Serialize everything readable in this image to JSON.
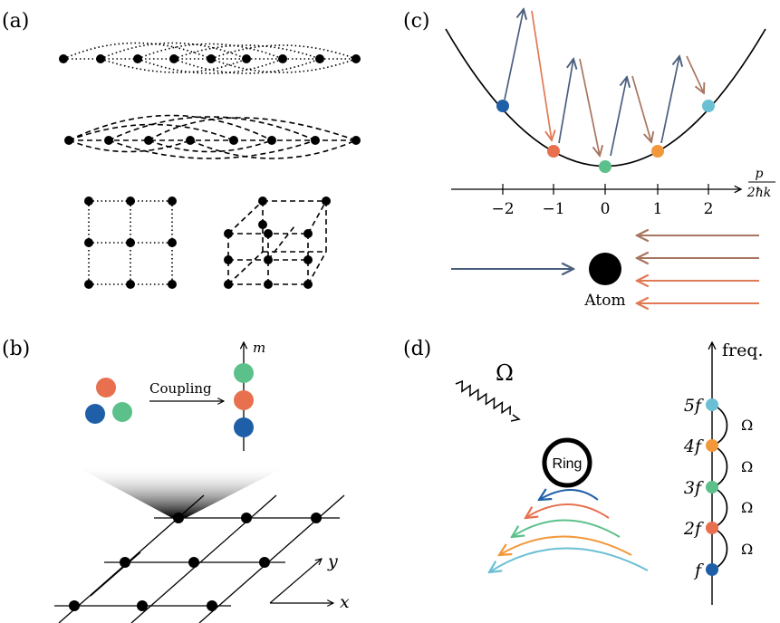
{
  "panels": {
    "a": {
      "label": "(a)"
    },
    "b": {
      "label": "(b)",
      "arrow_label": "Coupling",
      "synthetic_axis_label": "m",
      "x_axis_label": "x",
      "y_axis_label": "y"
    },
    "c": {
      "label": "(c)",
      "axis_label_numerator": "p",
      "axis_label_denominator": "2ħk",
      "ticks": [
        "−2",
        "−1",
        "0",
        "1",
        "2"
      ],
      "atom_label": "Atom"
    },
    "d": {
      "label": "(d)",
      "drive_label": "Ω",
      "ring_label": "Ring",
      "axis_label": "freq.",
      "levels": [
        "5f",
        "4f",
        "3f",
        "2f",
        "f"
      ],
      "coupling_labels": [
        "Ω",
        "Ω",
        "Ω",
        "Ω"
      ]
    }
  },
  "colors": {
    "blue": "#1f5fa8",
    "red": "#e8704f",
    "green": "#5cc08a",
    "orange": "#f2983a",
    "cyan": "#6bbfd3",
    "navy_arrow": "#4a5f7e",
    "salmon_arrow": "#e07a55",
    "brown_arrow": "#a87560"
  }
}
